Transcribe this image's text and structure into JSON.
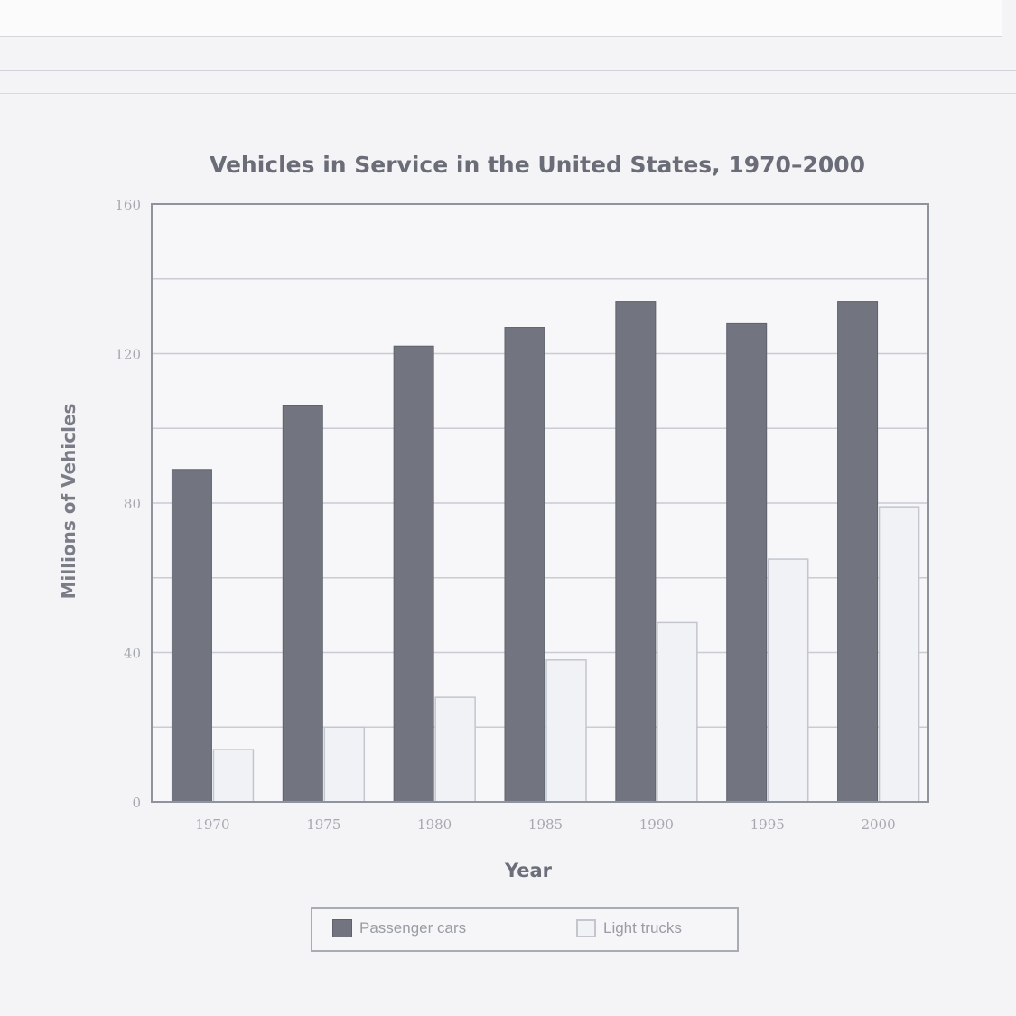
{
  "chart_data": {
    "type": "bar",
    "title": "Vehicles in Service in the United States, 1970–2000",
    "xlabel": "Year",
    "ylabel": "Millions of Vehicles",
    "categories": [
      "1970",
      "1975",
      "1980",
      "1985",
      "1990",
      "1995",
      "2000"
    ],
    "series": [
      {
        "name": "Passenger cars",
        "values": [
          89,
          106,
          122,
          127,
          134,
          128,
          134
        ],
        "color": "#72757f"
      },
      {
        "name": "Light trucks",
        "values": [
          14,
          20,
          28,
          38,
          48,
          65,
          79
        ],
        "color": "#f1f2f5"
      }
    ],
    "ylim": [
      0,
      160
    ],
    "yticks": [
      "0",
      "40",
      "80",
      "120",
      "160"
    ],
    "grid": true,
    "legend": "bottom"
  }
}
